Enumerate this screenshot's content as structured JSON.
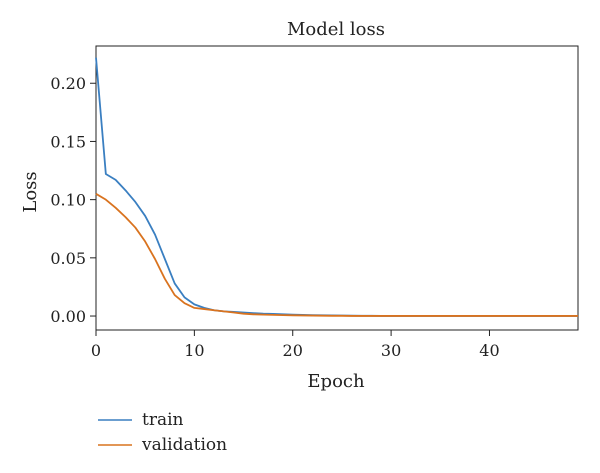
{
  "chart_data": {
    "type": "line",
    "title": "Model loss",
    "xlabel": "Epoch",
    "ylabel": "Loss",
    "xlim": [
      0,
      49
    ],
    "ylim": [
      -0.012,
      0.232
    ],
    "xticks": [
      0,
      10,
      20,
      30,
      40
    ],
    "yticks": [
      0.0,
      0.05,
      0.1,
      0.15,
      0.2
    ],
    "ytick_labels": [
      "0.00",
      "0.05",
      "0.10",
      "0.15",
      "0.20"
    ],
    "xtick_labels": [
      "0",
      "10",
      "20",
      "30",
      "40"
    ],
    "grid": false,
    "legend_position": "bottom-left-below",
    "x": [
      0,
      1,
      2,
      3,
      4,
      5,
      6,
      7,
      8,
      9,
      10,
      11,
      12,
      13,
      14,
      15,
      16,
      17,
      18,
      19,
      20,
      21,
      22,
      23,
      24,
      25,
      26,
      27,
      28,
      29,
      30,
      31,
      32,
      33,
      34,
      35,
      36,
      37,
      38,
      39,
      40,
      41,
      42,
      43,
      44,
      45,
      46,
      47,
      48,
      49
    ],
    "series": [
      {
        "name": "train",
        "color": "#3a7fc1",
        "values": [
          0.222,
          0.122,
          0.117,
          0.108,
          0.098,
          0.086,
          0.07,
          0.049,
          0.028,
          0.016,
          0.01,
          0.007,
          0.005,
          0.004,
          0.0035,
          0.003,
          0.0025,
          0.002,
          0.0018,
          0.0015,
          0.0012,
          0.001,
          0.0008,
          0.0006,
          0.0005,
          0.0004,
          0.0003,
          0.0002,
          0.0002,
          0.0001,
          0.0001,
          0.0001,
          0.0001,
          0.0001,
          0.0001,
          0.0001,
          0.0001,
          0.0001,
          0.0001,
          0.0001,
          0.0001,
          0.0001,
          0.0001,
          0.0001,
          0.0001,
          0.0001,
          0.0001,
          0.0001,
          0.0001,
          0.0001
        ]
      },
      {
        "name": "validation",
        "color": "#d9731f",
        "values": [
          0.105,
          0.1,
          0.093,
          0.085,
          0.076,
          0.064,
          0.049,
          0.032,
          0.018,
          0.011,
          0.007,
          0.006,
          0.005,
          0.004,
          0.003,
          0.002,
          0.0015,
          0.0012,
          0.001,
          0.0008,
          0.0006,
          0.0005,
          0.0004,
          0.0003,
          0.0002,
          0.0002,
          0.0001,
          0.0001,
          0.0001,
          0.0001,
          0.0001,
          0.0001,
          0.0001,
          0.0001,
          0.0001,
          0.0001,
          0.0001,
          0.0001,
          0.0001,
          0.0001,
          0.0001,
          0.0001,
          0.0001,
          0.0001,
          0.0001,
          0.0001,
          0.0001,
          0.0001,
          0.0001,
          0.0001
        ]
      }
    ]
  }
}
